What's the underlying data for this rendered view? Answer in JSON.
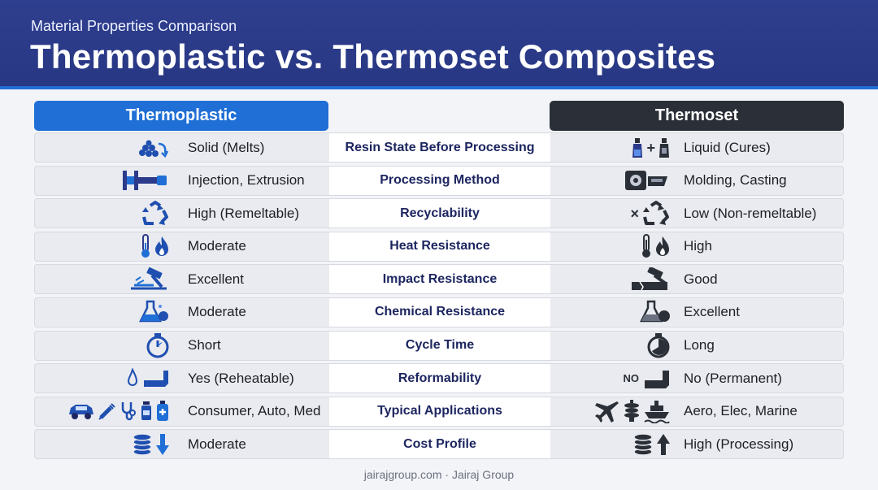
{
  "header": {
    "subtitle": "Material Properties Comparison",
    "title": "Thermoplastic vs. Thermoset Composites"
  },
  "columns": {
    "left": "Thermoplastic",
    "right": "Thermoset"
  },
  "colors": {
    "header_bg": "#2b3a8a",
    "left_accent": "#1f6fd6",
    "right_accent": "#2b3038",
    "property_text": "#1d2660"
  },
  "rows": [
    {
      "property": "Resin State Before Processing",
      "left": "Solid (Melts)",
      "right": "Liquid (Cures)",
      "left_icons": [
        "pellets-icon",
        "arrow-icon"
      ],
      "right_icons": [
        "bottle-icon",
        "bottle-icon"
      ]
    },
    {
      "property": "Processing Method",
      "left": "Injection, Extrusion",
      "right": "Molding, Casting",
      "left_icons": [
        "injection-machine-icon"
      ],
      "right_icons": [
        "mold-press-icon"
      ]
    },
    {
      "property": "Recyclability",
      "left": "High (Remeltable)",
      "right": "Low (Non-remeltable)",
      "left_icons": [
        "recycle-icon"
      ],
      "right_icons": [
        "recycle-icon"
      ]
    },
    {
      "property": "Heat Resistance",
      "left": "Moderate",
      "right": "High",
      "left_icons": [
        "thermometer-icon",
        "flame-icon"
      ],
      "right_icons": [
        "thermometer-icon",
        "flame-icon"
      ]
    },
    {
      "property": "Impact Resistance",
      "left": "Excellent",
      "right": "Good",
      "left_icons": [
        "hammer-icon"
      ],
      "right_icons": [
        "hammer-icon"
      ]
    },
    {
      "property": "Chemical Resistance",
      "left": "Moderate",
      "right": "Excellent",
      "left_icons": [
        "flask-icon"
      ],
      "right_icons": [
        "flask-icon"
      ]
    },
    {
      "property": "Cycle Time",
      "left": "Short",
      "right": "Long",
      "left_icons": [
        "stopwatch-icon"
      ],
      "right_icons": [
        "stopwatch-icon"
      ]
    },
    {
      "property": "Reformability",
      "left": "Yes (Reheatable)",
      "right": "No (Permanent)",
      "left_icons": [
        "flame-icon",
        "bent-sheet-icon"
      ],
      "right_icons": [
        "bent-sheet-icon"
      ],
      "right_badge": "NO"
    },
    {
      "property": "Typical Applications",
      "left": "Consumer, Auto, Med",
      "right": "Aero, Elec, Marine",
      "left_icons": [
        "car-icon",
        "syringe-icon",
        "stethoscope-icon",
        "bottle-icon",
        "device-icon"
      ],
      "right_icons": [
        "airplane-icon",
        "insulator-icon",
        "ship-icon"
      ]
    },
    {
      "property": "Cost Profile",
      "left": "Moderate",
      "right": "High (Processing)",
      "left_icons": [
        "coins-icon",
        "arrow-down-icon"
      ],
      "right_icons": [
        "coins-icon",
        "arrow-up-icon"
      ]
    }
  ],
  "footer": {
    "site": "jairajgroup.com",
    "separator": "·",
    "company": "Jairaj Group"
  }
}
